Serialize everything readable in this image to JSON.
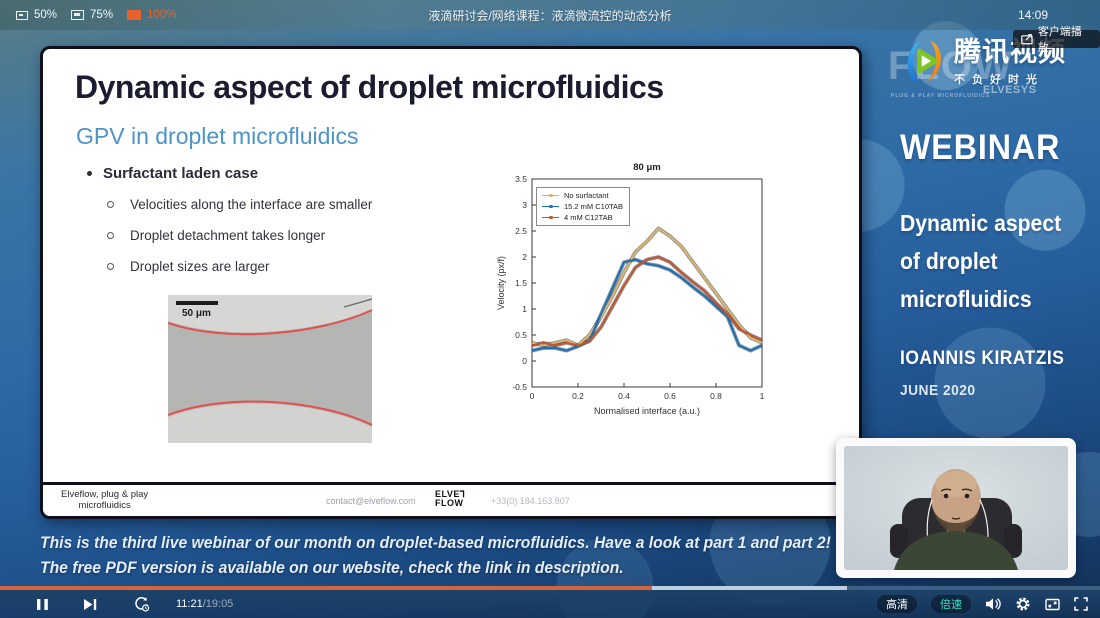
{
  "topbar": {
    "zoom_levels": [
      {
        "label": "50%"
      },
      {
        "label": "75%"
      },
      {
        "label": "100%"
      }
    ],
    "title": "液滴研讨会/网络课程：液滴微流控的动态分析",
    "clock": "14:09"
  },
  "client_button": {
    "label": "客户端播放"
  },
  "brand": {
    "name": "腾讯视频",
    "tagline": "不负好时光",
    "watermark_main": "FLOW",
    "watermark_sub": "PLUG & PLAY MICROFLUIDICS",
    "watermark_side": "ELVESYS"
  },
  "colors": {
    "accent_orange": "#e8622d",
    "accent_teal": "#3ce0c5",
    "progress_orange": "#d2653d",
    "progress_buffer": "#bcd0e2"
  },
  "slide": {
    "title": "Dynamic aspect of droplet microfluidics",
    "subtitle": "GPV in droplet microfluidics",
    "bullet": "Surfactant laden case",
    "sub_bullets": [
      "Velocities along the interface are smaller",
      "Droplet detachment takes longer",
      "Droplet sizes are larger"
    ],
    "image_scalebar": "50 μm",
    "footer": {
      "left_line1": "Elveflow, plug & play",
      "left_line2": "microfluidics",
      "email": "contact@elveflow.com",
      "logo_line1": "ELVE⅂",
      "logo_line2": "FLOW",
      "phone": "+33(0) 184.163.807"
    }
  },
  "chart_data": {
    "type": "line",
    "title": "80 μm",
    "xlabel": "Normalised interface (a.u.)",
    "ylabel": "Velocity (px/f)",
    "xlim": [
      0,
      1
    ],
    "ylim": [
      -0.5,
      3.5
    ],
    "xticks": [
      0,
      0.2,
      0.4,
      0.6,
      0.8,
      1
    ],
    "yticks": [
      -0.5,
      0,
      0.5,
      1,
      1.5,
      2,
      2.5,
      3,
      3.5
    ],
    "grid": false,
    "legend_position": "top-left",
    "x": [
      0,
      0.05,
      0.1,
      0.15,
      0.2,
      0.25,
      0.3,
      0.35,
      0.4,
      0.45,
      0.5,
      0.55,
      0.6,
      0.65,
      0.7,
      0.75,
      0.8,
      0.85,
      0.9,
      0.95,
      1
    ],
    "series": [
      {
        "name": "No surfactant",
        "color": "#dcb568",
        "values": [
          0.35,
          0.3,
          0.35,
          0.4,
          0.3,
          0.5,
          0.85,
          1.25,
          1.7,
          2.1,
          2.3,
          2.55,
          2.4,
          2.2,
          1.9,
          1.6,
          1.3,
          1.0,
          0.7,
          0.45,
          0.35
        ]
      },
      {
        "name": "15.2 mM C10TAB",
        "color": "#1c72b8",
        "values": [
          0.2,
          0.25,
          0.25,
          0.2,
          0.28,
          0.4,
          0.9,
          1.4,
          1.9,
          1.95,
          1.87,
          1.83,
          1.75,
          1.6,
          1.42,
          1.25,
          1.05,
          0.85,
          0.3,
          0.2,
          0.3
        ]
      },
      {
        "name": "4 mM C12TAB",
        "color": "#c8562b",
        "values": [
          0.3,
          0.35,
          0.3,
          0.35,
          0.3,
          0.38,
          0.65,
          1.05,
          1.45,
          1.8,
          1.95,
          2.0,
          1.9,
          1.7,
          1.52,
          1.35,
          1.12,
          0.9,
          0.62,
          0.5,
          0.4
        ]
      }
    ]
  },
  "panel": {
    "webinar": "WEBINAR",
    "title_lines": [
      "Dynamic aspect",
      "of droplet",
      "microfluidics"
    ],
    "speaker": "IOANNIS KIRATZIS",
    "date": "JUNE 2020"
  },
  "subtitles": {
    "line1": "This is the third live webinar of our month on droplet-based microfluidics. Have a look at part 1 and part 2!",
    "line2": "The free PDF version is available on our website, check the link in description."
  },
  "player": {
    "current_time": "11:21",
    "total_time": "/19:05",
    "progress_played_pct": 59.3,
    "progress_buffered_pct": 77,
    "quality_label": "高清",
    "speed_label": "倍速"
  }
}
